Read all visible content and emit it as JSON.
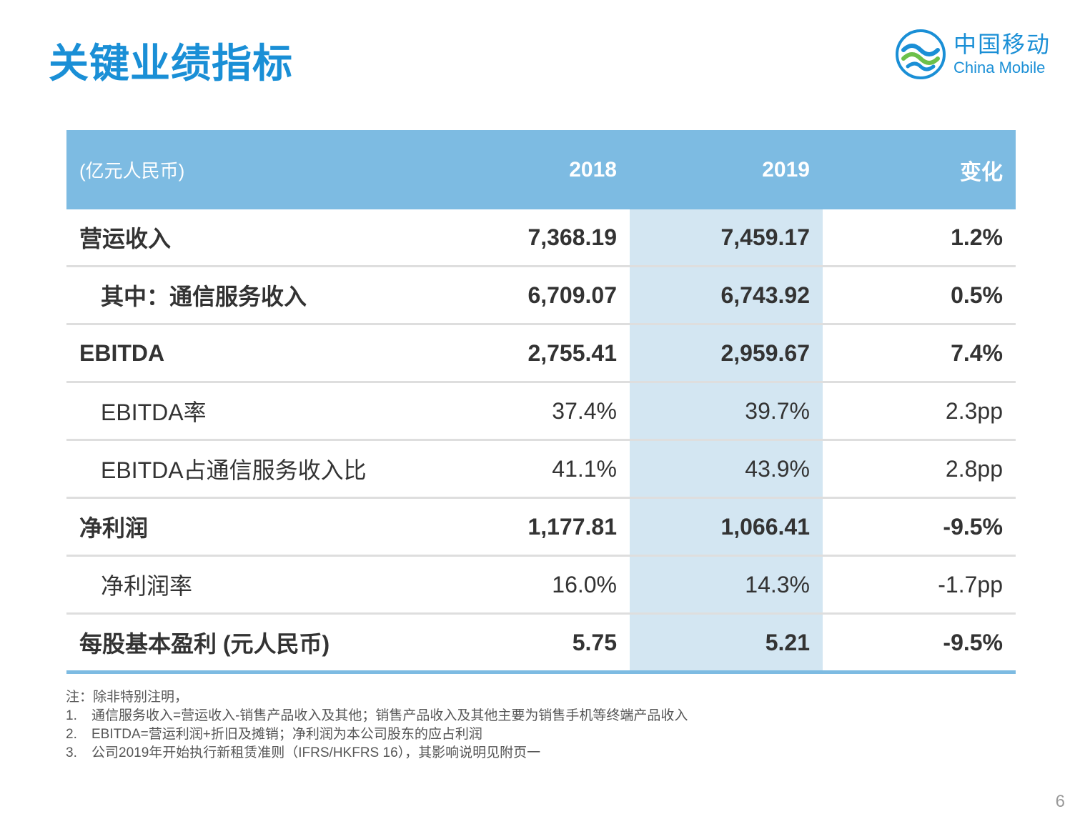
{
  "page": {
    "title": "关键业绩指标",
    "page_number": "6"
  },
  "logo": {
    "cn": "中国移动",
    "en": "China Mobile",
    "brand_color": "#1a8fd6"
  },
  "table": {
    "header": {
      "unit": "(亿元人民币)",
      "col_2018": "2018",
      "col_2019": "2019",
      "col_change": "变化"
    },
    "rows": [
      {
        "label": "营运收入",
        "v2018": "7,368.19",
        "v2019": "7,459.17",
        "change": "1.2%"
      },
      {
        "label": "其中：通信服务收入",
        "v2018": "6,709.07",
        "v2019": "6,743.92",
        "change": "0.5%"
      },
      {
        "label": "EBITDA",
        "v2018": "2,755.41",
        "v2019": "2,959.67",
        "change": "7.4%"
      },
      {
        "label": "EBITDA率",
        "v2018": "37.4%",
        "v2019": "39.7%",
        "change": "2.3pp"
      },
      {
        "label": "EBITDA占通信服务收入比",
        "v2018": "41.1%",
        "v2019": "43.9%",
        "change": "2.8pp"
      },
      {
        "label": "净利润",
        "v2018": "1,177.81",
        "v2019": "1,066.41",
        "change": "-9.5%"
      },
      {
        "label": "净利润率",
        "v2018": "16.0%",
        "v2019": "14.3%",
        "change": "-1.7pp"
      },
      {
        "label": "每股基本盈利 (元人民币)",
        "v2018": "5.75",
        "v2019": "5.21",
        "change": "-9.5%"
      }
    ],
    "colors": {
      "header_bg": "#7dbbe2",
      "highlight_col_bg": "#d3e6f2"
    }
  },
  "notes": {
    "intro": "注：除非特别注明，",
    "items": [
      {
        "num": "1.",
        "text": "通信服务收入=营运收入-销售产品收入及其他；销售产品收入及其他主要为销售手机等终端产品收入"
      },
      {
        "num": "2.",
        "text": "EBITDA=营运利润+折旧及摊销；净利润为本公司股东的应占利润"
      },
      {
        "num": "3.",
        "text": "公司2019年开始执行新租赁准则（IFRS/HKFRS 16），其影响说明见附页一"
      }
    ]
  }
}
